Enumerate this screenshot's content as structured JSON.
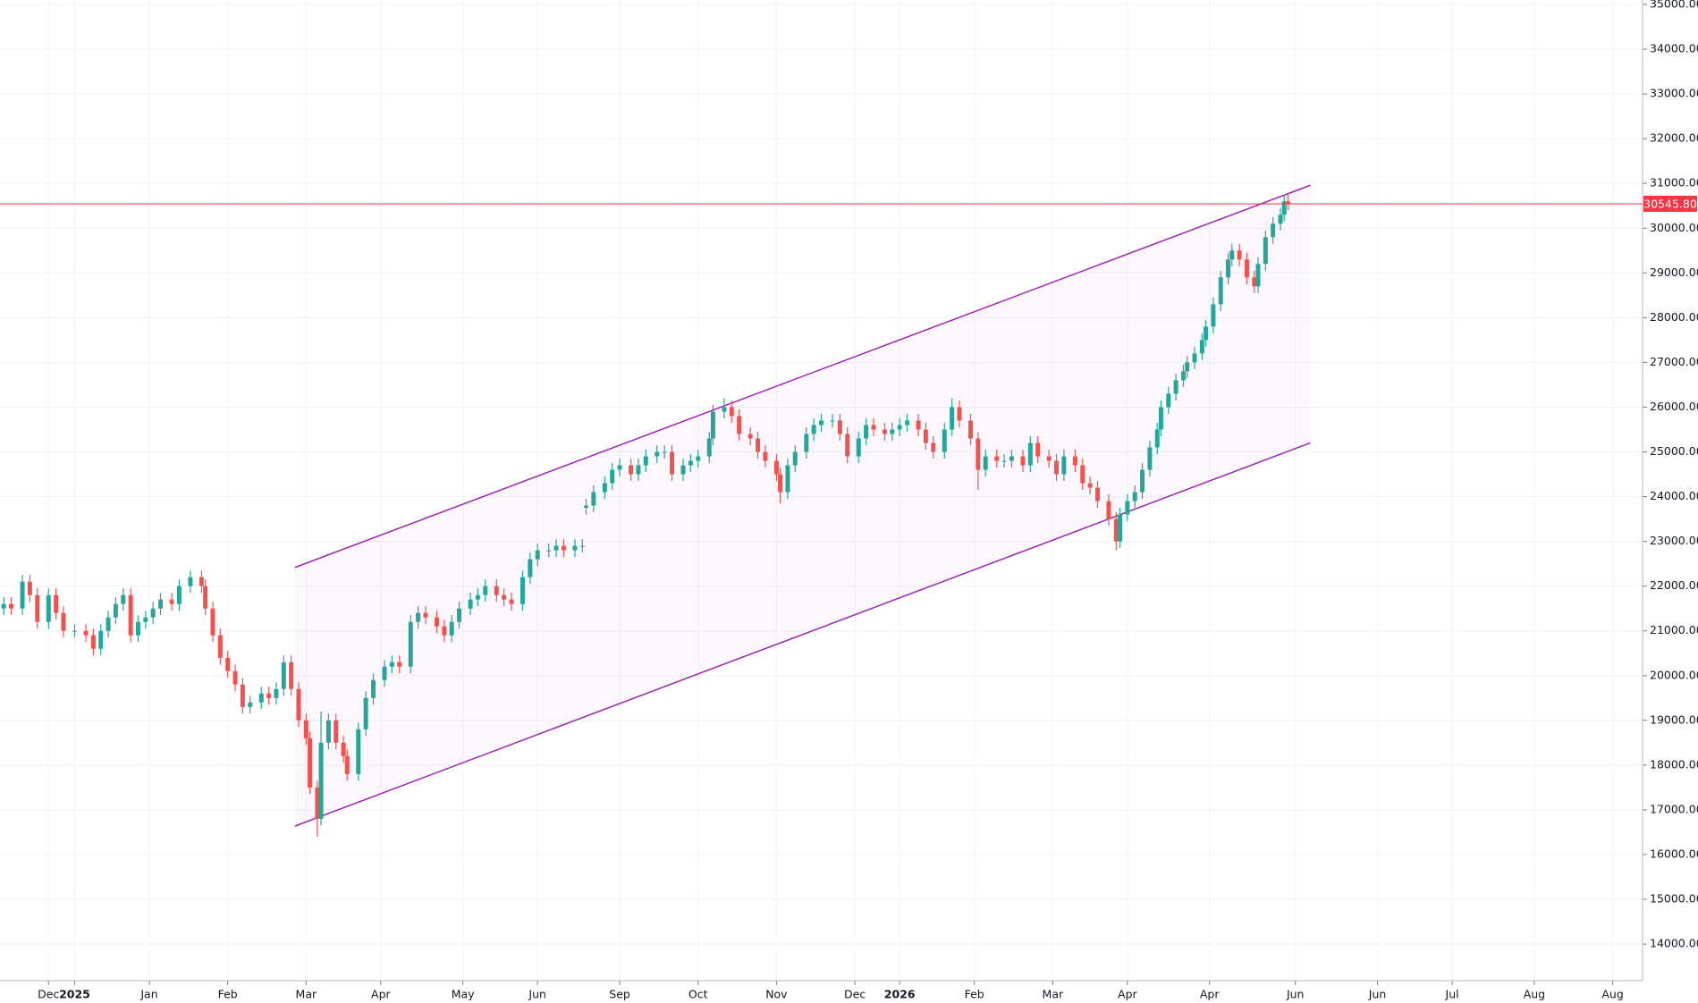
{
  "chart_data": {
    "type": "candlestick",
    "up_color": "#26a69a",
    "down_color": "#ef5350",
    "grid": true,
    "xlim": [
      0,
      440
    ],
    "ylim": [
      13182,
      35100
    ],
    "xticks": [
      {
        "value": 13,
        "label": "Dec"
      },
      {
        "value": 20,
        "label": "2025"
      },
      {
        "value": 40,
        "label": "Jan"
      },
      {
        "value": 61,
        "label": "Feb"
      },
      {
        "value": 82,
        "label": "Mar"
      },
      {
        "value": 102,
        "label": "Apr"
      },
      {
        "value": 124,
        "label": "May"
      },
      {
        "value": 144,
        "label": "Jun"
      },
      {
        "value": 166,
        "label": "Sep"
      },
      {
        "value": 187,
        "label": "Oct"
      },
      {
        "value": 208,
        "label": "Nov"
      },
      {
        "value": 229,
        "label": "Dec"
      },
      {
        "value": 241,
        "label": "2026"
      },
      {
        "value": 261,
        "label": "Feb"
      },
      {
        "value": 282,
        "label": "Mar"
      },
      {
        "value": 302,
        "label": "Apr"
      },
      {
        "value": 324,
        "label": "Apr"
      },
      {
        "value": 347,
        "label": "Jun"
      },
      {
        "value": 369,
        "label": "Jun"
      },
      {
        "value": 389,
        "label": "Jul"
      },
      {
        "value": 411,
        "label": "Aug"
      },
      {
        "value": 432,
        "label": "Aug"
      }
    ],
    "yticks": [
      {
        "value": 14000,
        "label": "14000.00"
      },
      {
        "value": 15000,
        "label": "15000.00"
      },
      {
        "value": 16000,
        "label": "16000.00"
      },
      {
        "value": 17000,
        "label": "17000.00"
      },
      {
        "value": 18000,
        "label": "18000.00"
      },
      {
        "value": 19000,
        "label": "19000.00"
      },
      {
        "value": 20000,
        "label": "20000.00"
      },
      {
        "value": 21000,
        "label": "21000.00"
      },
      {
        "value": 22000,
        "label": "22000.00"
      },
      {
        "value": 23000,
        "label": "23000.00"
      },
      {
        "value": 24000,
        "label": "24000.00"
      },
      {
        "value": 25000,
        "label": "25000.00"
      },
      {
        "value": 26000,
        "label": "26000.00"
      },
      {
        "value": 27000,
        "label": "27000.00"
      },
      {
        "value": 28000,
        "label": "28000.00"
      },
      {
        "value": 29000,
        "label": "29000.00"
      },
      {
        "value": 30000,
        "label": "30000.00"
      },
      {
        "value": 31000,
        "label": "31000.00"
      },
      {
        "value": 32000,
        "label": "32000.00"
      },
      {
        "value": 33000,
        "label": "33000.00"
      },
      {
        "value": 34000,
        "label": "34000.00"
      },
      {
        "value": 35000,
        "label": "35000.00"
      }
    ],
    "x": [
      1,
      3,
      6,
      8,
      10,
      13,
      15,
      17,
      20,
      23,
      25,
      27,
      29,
      31,
      33,
      35,
      37,
      39,
      41,
      43,
      46,
      48,
      51,
      54,
      55,
      57,
      59,
      61,
      63,
      65,
      67,
      70,
      72,
      74,
      76,
      78,
      80,
      82,
      83,
      85,
      86,
      88,
      90,
      92,
      93,
      96,
      98,
      100,
      103,
      105,
      107,
      110,
      112,
      114,
      117,
      119,
      121,
      123,
      126,
      128,
      130,
      133,
      135,
      137,
      140,
      142,
      144,
      147,
      149,
      151,
      154,
      156,
      157,
      159,
      162,
      164,
      166,
      169,
      171,
      173,
      176,
      178,
      180,
      183,
      185,
      187,
      190,
      191,
      194,
      196,
      198,
      201,
      203,
      205,
      208,
      209,
      211,
      213,
      216,
      218,
      220,
      223,
      225,
      227,
      230,
      232,
      234,
      237,
      239,
      241,
      243,
      246,
      248,
      250,
      253,
      255,
      257,
      260,
      262,
      264,
      267,
      269,
      271,
      274,
      276,
      278,
      281,
      283,
      285,
      288,
      290,
      292,
      294,
      297,
      299,
      300,
      302,
      304,
      306,
      308,
      310,
      311,
      313,
      315,
      317,
      318,
      320,
      322,
      323,
      325,
      327,
      329,
      330,
      332,
      334,
      336,
      337,
      339,
      341,
      343,
      344,
      345
    ],
    "open": [
      21500,
      21600,
      21500,
      22100,
      21800,
      21200,
      21800,
      21400,
      21000,
      21000,
      20900,
      20600,
      21000,
      21300,
      21600,
      21800,
      20900,
      21200,
      21300,
      21500,
      21700,
      21600,
      22000,
      22200,
      22000,
      21500,
      20900,
      20400,
      20100,
      19800,
      19300,
      19400,
      19600,
      19500,
      19700,
      20300,
      19700,
      19000,
      18600,
      17500,
      16800,
      18500,
      19000,
      18500,
      18200,
      17800,
      18800,
      19500,
      19900,
      20200,
      20300,
      20200,
      21200,
      21400,
      21300,
      21100,
      20900,
      21200,
      21500,
      21700,
      21800,
      22000,
      21800,
      21700,
      21600,
      22200,
      22600,
      22800,
      22800,
      22900,
      22800,
      22900,
      23750,
      23800,
      24100,
      24300,
      24600,
      24700,
      24500,
      24700,
      24900,
      25000,
      25000,
      24500,
      24700,
      24800,
      24900,
      25300,
      25900,
      26000,
      25800,
      25400,
      25300,
      25000,
      24800,
      24500,
      24100,
      24700,
      25000,
      25400,
      25600,
      25700,
      25700,
      25400,
      24900,
      25300,
      25600,
      25500,
      25400,
      25500,
      25600,
      25700,
      25500,
      25200,
      25000,
      25500,
      26000,
      25700,
      25300,
      24600,
      24900,
      24800,
      24800,
      24900,
      24700,
      25200,
      24900,
      24800,
      24500,
      24900,
      24700,
      24300,
      24200,
      23900,
      23500,
      23000,
      23600,
      23900,
      24100,
      24600,
      25100,
      25500,
      26000,
      26300,
      26600,
      26800,
      27000,
      27200,
      27500,
      27800,
      28300,
      28900,
      29300,
      29500,
      29300,
      28900,
      28700,
      29200,
      29800,
      30100,
      30300,
      30600
    ],
    "high": [
      21750,
      21750,
      22250,
      22250,
      21950,
      21950,
      21950,
      21550,
      21150,
      21150,
      21050,
      21150,
      21450,
      21750,
      21950,
      21950,
      21350,
      21450,
      21650,
      21850,
      21850,
      22150,
      22350,
      22350,
      22150,
      21650,
      21050,
      20550,
      20250,
      19950,
      19550,
      19750,
      19750,
      19850,
      20450,
      20450,
      19850,
      19150,
      18750,
      17650,
      19200,
      19150,
      19150,
      18650,
      18350,
      18950,
      19650,
      20050,
      20350,
      20450,
      20450,
      21350,
      21550,
      21550,
      21450,
      21250,
      21350,
      21650,
      21850,
      21950,
      22150,
      22150,
      21950,
      21850,
      22350,
      22750,
      22950,
      22950,
      23050,
      23050,
      23050,
      23050,
      23950,
      24250,
      24450,
      24750,
      24850,
      24850,
      24850,
      25050,
      25150,
      25150,
      25150,
      24850,
      24950,
      25050,
      25450,
      26050,
      26200,
      26150,
      25950,
      25550,
      25450,
      25150,
      24950,
      24650,
      24850,
      25150,
      25550,
      25750,
      25850,
      25850,
      25850,
      25550,
      25450,
      25750,
      25750,
      25650,
      25650,
      25750,
      25850,
      25850,
      25650,
      25350,
      25650,
      26200,
      26150,
      25850,
      25450,
      25050,
      25050,
      24950,
      25050,
      25050,
      25350,
      25350,
      25050,
      24950,
      25050,
      25050,
      24850,
      24450,
      24350,
      24050,
      23650,
      23750,
      24050,
      24250,
      24750,
      25250,
      25650,
      26150,
      26450,
      26750,
      26950,
      27150,
      27350,
      27650,
      27950,
      28450,
      29050,
      29450,
      29650,
      29650,
      29450,
      29050,
      29350,
      29950,
      30250,
      30450,
      30750,
      30750
    ],
    "low": [
      21350,
      21350,
      21350,
      21650,
      21050,
      21050,
      21250,
      20850,
      20850,
      20750,
      20450,
      20450,
      20850,
      21150,
      21450,
      20750,
      20750,
      21050,
      21150,
      21350,
      21450,
      21450,
      21850,
      21850,
      21350,
      20750,
      20250,
      19950,
      19650,
      19150,
      19150,
      19250,
      19350,
      19350,
      19550,
      19550,
      18850,
      18450,
      17350,
      16400,
      16650,
      18350,
      18350,
      18050,
      17650,
      17650,
      18650,
      19350,
      19750,
      20050,
      20050,
      20050,
      21050,
      21150,
      20950,
      20750,
      20750,
      21050,
      21350,
      21550,
      21650,
      21650,
      21550,
      21450,
      21450,
      22050,
      22450,
      22650,
      22650,
      22650,
      22650,
      22750,
      23600,
      23650,
      23950,
      24150,
      24450,
      24350,
      24350,
      24550,
      24750,
      24850,
      24350,
      24350,
      24550,
      24650,
      24750,
      25150,
      25750,
      25650,
      25250,
      25150,
      24850,
      24650,
      24350,
      23850,
      23950,
      24550,
      24850,
      25250,
      25450,
      25550,
      25250,
      24750,
      24750,
      25150,
      25350,
      25250,
      25250,
      25350,
      25450,
      25350,
      25050,
      24850,
      24850,
      25350,
      25550,
      25150,
      24150,
      24450,
      24650,
      24650,
      24650,
      24550,
      24550,
      24750,
      24650,
      24350,
      24350,
      24550,
      24150,
      24050,
      23750,
      23350,
      22800,
      22850,
      23450,
      23750,
      23950,
      24450,
      24950,
      25350,
      25850,
      26150,
      26450,
      26650,
      26850,
      27050,
      27350,
      27650,
      28150,
      28750,
      29150,
      29150,
      28750,
      28550,
      28550,
      29050,
      29650,
      29950,
      30150,
      30400
    ],
    "close": [
      21600,
      21500,
      22100,
      21800,
      21200,
      21800,
      21400,
      21000,
      21000,
      20900,
      20600,
      21000,
      21300,
      21600,
      21800,
      20900,
      21200,
      21300,
      21500,
      21700,
      21600,
      22000,
      22200,
      22000,
      21500,
      20900,
      20400,
      20100,
      19800,
      19300,
      19400,
      19600,
      19500,
      19700,
      20300,
      19700,
      19000,
      18600,
      17500,
      16800,
      18500,
      19000,
      18500,
      18200,
      17800,
      18800,
      19500,
      19900,
      20200,
      20300,
      20200,
      21200,
      21400,
      21300,
      21100,
      20900,
      21200,
      21500,
      21700,
      21800,
      22000,
      21800,
      21700,
      21600,
      22200,
      22600,
      22800,
      22800,
      22900,
      22800,
      22900,
      22900,
      23800,
      24100,
      24300,
      24600,
      24700,
      24500,
      24700,
      24900,
      25000,
      25000,
      24500,
      24700,
      24800,
      24900,
      25300,
      25900,
      26000,
      25800,
      25400,
      25300,
      25000,
      24800,
      24500,
      24100,
      24700,
      25000,
      25400,
      25600,
      25700,
      25700,
      25400,
      24900,
      25300,
      25600,
      25500,
      25400,
      25500,
      25600,
      25700,
      25500,
      25200,
      25000,
      25500,
      26000,
      25700,
      25300,
      24600,
      24900,
      24800,
      24800,
      24900,
      24700,
      25200,
      24900,
      24800,
      24500,
      24900,
      24700,
      24300,
      24200,
      23900,
      23500,
      23000,
      23600,
      23900,
      24100,
      24600,
      25100,
      25500,
      26000,
      26300,
      26600,
      26800,
      27000,
      27200,
      27500,
      27800,
      28300,
      28900,
      29300,
      29500,
      29300,
      28900,
      28700,
      29200,
      29800,
      30100,
      30300,
      30600,
      30545.8
    ],
    "channel": {
      "x": [
        79,
        351
      ],
      "upper": [
        22418,
        30959
      ],
      "lower": [
        16636,
        25201
      ],
      "color": "#9c27b0"
    },
    "last_price": {
      "value": 30545.8,
      "label": "30545.80",
      "color": "#f23645"
    }
  }
}
